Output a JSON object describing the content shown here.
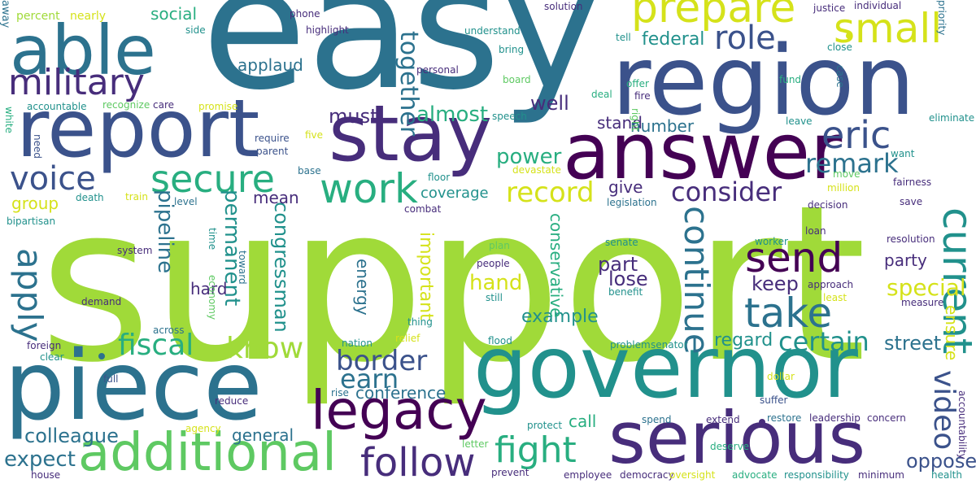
{
  "background": "#ffffff",
  "palette": {
    "dark_purple": "#440154",
    "indigo": "#472d7b",
    "slate_blue": "#3b528b",
    "steel_blue": "#2c728e",
    "teal": "#21918c",
    "sea_green": "#28ae80",
    "green": "#5ec962",
    "lime": "#a0da39",
    "yellow": "#d5e21a"
  },
  "words": [
    {
      "text": "support",
      "color": "lime"
    },
    {
      "text": "easy",
      "color": "steel_blue"
    },
    {
      "text": "governor",
      "color": "teal"
    },
    {
      "text": "piece",
      "color": "steel_blue"
    },
    {
      "text": "region",
      "color": "slate_blue"
    },
    {
      "text": "report",
      "color": "slate_blue"
    },
    {
      "text": "answer",
      "color": "dark_purple"
    },
    {
      "text": "stay",
      "color": "indigo"
    },
    {
      "text": "serious",
      "color": "indigo"
    },
    {
      "text": "able",
      "color": "steel_blue"
    },
    {
      "text": "additional",
      "color": "green"
    },
    {
      "text": "legacy",
      "color": "dark_purple"
    },
    {
      "text": "prepare",
      "color": "yellow"
    },
    {
      "text": "small",
      "color": "yellow"
    },
    {
      "text": "military",
      "color": "indigo"
    },
    {
      "text": "work",
      "color": "sea_green"
    },
    {
      "text": "follow",
      "color": "indigo"
    },
    {
      "text": "secure",
      "color": "sea_green"
    },
    {
      "text": "send",
      "color": "dark_purple"
    },
    {
      "text": "take",
      "color": "steel_blue"
    },
    {
      "text": "current",
      "color": "teal"
    },
    {
      "text": "eric",
      "color": "slate_blue"
    },
    {
      "text": "voice",
      "color": "slate_blue"
    },
    {
      "text": "role",
      "color": "slate_blue"
    },
    {
      "text": "continue",
      "color": "steel_blue"
    },
    {
      "text": "apply",
      "color": "steel_blue"
    },
    {
      "text": "fight",
      "color": "sea_green"
    },
    {
      "text": "fiscal",
      "color": "sea_green"
    },
    {
      "text": "know",
      "color": "lime"
    },
    {
      "text": "record",
      "color": "yellow"
    },
    {
      "text": "border",
      "color": "slate_blue"
    },
    {
      "text": "consider",
      "color": "indigo"
    },
    {
      "text": "video",
      "color": "slate_blue"
    },
    {
      "text": "remark",
      "color": "steel_blue"
    },
    {
      "text": "earn",
      "color": "steel_blue"
    },
    {
      "text": "certain",
      "color": "teal"
    },
    {
      "text": "expect",
      "color": "steel_blue"
    },
    {
      "text": "together",
      "color": "steel_blue"
    },
    {
      "text": "almost",
      "color": "sea_green"
    },
    {
      "text": "special",
      "color": "yellow"
    },
    {
      "text": "power",
      "color": "sea_green"
    },
    {
      "text": "hand",
      "color": "yellow"
    },
    {
      "text": "pipeline",
      "color": "steel_blue"
    },
    {
      "text": "permanent",
      "color": "teal"
    },
    {
      "text": "congressman",
      "color": "teal"
    },
    {
      "text": "must",
      "color": "indigo"
    },
    {
      "text": "well",
      "color": "indigo"
    },
    {
      "text": "colleague",
      "color": "steel_blue"
    },
    {
      "text": "oppose",
      "color": "slate_blue"
    },
    {
      "text": "street",
      "color": "steel_blue"
    },
    {
      "text": "keep",
      "color": "indigo"
    },
    {
      "text": "part",
      "color": "indigo"
    },
    {
      "text": "lose",
      "color": "indigo"
    },
    {
      "text": "example",
      "color": "teal"
    },
    {
      "text": "regard",
      "color": "teal"
    },
    {
      "text": "conference",
      "color": "steel_blue"
    },
    {
      "text": "federal",
      "color": "teal"
    },
    {
      "text": "social",
      "color": "sea_green"
    },
    {
      "text": "group",
      "color": "yellow"
    },
    {
      "text": "general",
      "color": "steel_blue"
    },
    {
      "text": "call",
      "color": "sea_green"
    },
    {
      "text": "mean",
      "color": "indigo"
    },
    {
      "text": "hard",
      "color": "indigo"
    },
    {
      "text": "stand",
      "color": "indigo"
    },
    {
      "text": "number",
      "color": "steel_blue"
    },
    {
      "text": "coverage",
      "color": "teal"
    },
    {
      "text": "give",
      "color": "indigo"
    },
    {
      "text": "party",
      "color": "indigo"
    },
    {
      "text": "important",
      "color": "yellow"
    },
    {
      "text": "conservative",
      "color": "sea_green"
    },
    {
      "text": "energy",
      "color": "steel_blue"
    },
    {
      "text": "applaud",
      "color": "steel_blue"
    },
    {
      "text": "ensure",
      "color": "yellow"
    },
    {
      "text": "percent",
      "color": "lime"
    },
    {
      "text": "nearly",
      "color": "yellow"
    },
    {
      "text": "away",
      "color": "steel_blue"
    },
    {
      "text": "phone",
      "color": "indigo"
    },
    {
      "text": "solution",
      "color": "indigo"
    },
    {
      "text": "justice",
      "color": "indigo"
    },
    {
      "text": "individual",
      "color": "indigo"
    },
    {
      "text": "priority",
      "color": "steel_blue"
    },
    {
      "text": "side",
      "color": "teal"
    },
    {
      "text": "highlight",
      "color": "indigo"
    },
    {
      "text": "understand",
      "color": "teal"
    },
    {
      "text": "bring",
      "color": "teal"
    },
    {
      "text": "tell",
      "color": "teal"
    },
    {
      "text": "close",
      "color": "teal"
    },
    {
      "text": "personal",
      "color": "indigo"
    },
    {
      "text": "fund",
      "color": "sea_green"
    },
    {
      "text": "case",
      "color": "steel_blue"
    },
    {
      "text": "board",
      "color": "green"
    },
    {
      "text": "offer",
      "color": "sea_green"
    },
    {
      "text": "deal",
      "color": "sea_green"
    },
    {
      "text": "fire",
      "color": "indigo"
    },
    {
      "text": "white",
      "color": "sea_green"
    },
    {
      "text": "accountable",
      "color": "teal"
    },
    {
      "text": "recognize",
      "color": "green"
    },
    {
      "text": "care",
      "color": "indigo"
    },
    {
      "text": "promise",
      "color": "yellow"
    },
    {
      "text": "speech",
      "color": "teal"
    },
    {
      "text": "right",
      "color": "green"
    },
    {
      "text": "eliminate",
      "color": "teal"
    },
    {
      "text": "leave",
      "color": "teal"
    },
    {
      "text": "need",
      "color": "slate_blue"
    },
    {
      "text": "five",
      "color": "yellow"
    },
    {
      "text": "require",
      "color": "slate_blue"
    },
    {
      "text": "parent",
      "color": "slate_blue"
    },
    {
      "text": "want",
      "color": "teal"
    },
    {
      "text": "base",
      "color": "steel_blue"
    },
    {
      "text": "floor",
      "color": "teal"
    },
    {
      "text": "devastate",
      "color": "yellow"
    },
    {
      "text": "move",
      "color": "green"
    },
    {
      "text": "fairness",
      "color": "indigo"
    },
    {
      "text": "million",
      "color": "yellow"
    },
    {
      "text": "train",
      "color": "yellow"
    },
    {
      "text": "death",
      "color": "teal"
    },
    {
      "text": "level",
      "color": "steel_blue"
    },
    {
      "text": "legislation",
      "color": "steel_blue"
    },
    {
      "text": "decision",
      "color": "indigo"
    },
    {
      "text": "save",
      "color": "indigo"
    },
    {
      "text": "bipartisan",
      "color": "teal"
    },
    {
      "text": "combat",
      "color": "indigo"
    },
    {
      "text": "loan",
      "color": "indigo"
    },
    {
      "text": "time",
      "color": "teal"
    },
    {
      "text": "system",
      "color": "indigo"
    },
    {
      "text": "plan",
      "color": "green"
    },
    {
      "text": "senate",
      "color": "teal"
    },
    {
      "text": "worker",
      "color": "teal"
    },
    {
      "text": "resolution",
      "color": "indigo"
    },
    {
      "text": "toward",
      "color": "steel_blue"
    },
    {
      "text": "people",
      "color": "indigo"
    },
    {
      "text": "economy",
      "color": "green"
    },
    {
      "text": "approach",
      "color": "indigo"
    },
    {
      "text": "benefit",
      "color": "teal"
    },
    {
      "text": "demand",
      "color": "indigo"
    },
    {
      "text": "still",
      "color": "teal"
    },
    {
      "text": "least",
      "color": "yellow"
    },
    {
      "text": "measure",
      "color": "indigo"
    },
    {
      "text": "across",
      "color": "steel_blue"
    },
    {
      "text": "thing",
      "color": "teal"
    },
    {
      "text": "foreign",
      "color": "indigo"
    },
    {
      "text": "nation",
      "color": "teal"
    },
    {
      "text": "relief",
      "color": "yellow"
    },
    {
      "text": "flood",
      "color": "teal"
    },
    {
      "text": "problem",
      "color": "teal"
    },
    {
      "text": "senator",
      "color": "teal"
    },
    {
      "text": "clear",
      "color": "teal"
    },
    {
      "text": "full",
      "color": "slate_blue"
    },
    {
      "text": "dollar",
      "color": "yellow"
    },
    {
      "text": "reduce",
      "color": "indigo"
    },
    {
      "text": "rise",
      "color": "steel_blue"
    },
    {
      "text": "suffer",
      "color": "slate_blue"
    },
    {
      "text": "agency",
      "color": "yellow"
    },
    {
      "text": "protect",
      "color": "teal"
    },
    {
      "text": "spend",
      "color": "steel_blue"
    },
    {
      "text": "extend",
      "color": "indigo"
    },
    {
      "text": "restore",
      "color": "steel_blue"
    },
    {
      "text": "leadership",
      "color": "indigo"
    },
    {
      "text": "concern",
      "color": "indigo"
    },
    {
      "text": "accountability",
      "color": "indigo"
    },
    {
      "text": "letter",
      "color": "green"
    },
    {
      "text": "deserve",
      "color": "sea_green"
    },
    {
      "text": "house",
      "color": "indigo"
    },
    {
      "text": "prevent",
      "color": "indigo"
    },
    {
      "text": "employee",
      "color": "indigo"
    },
    {
      "text": "democracy",
      "color": "indigo"
    },
    {
      "text": "oversight",
      "color": "yellow"
    },
    {
      "text": "advocate",
      "color": "sea_green"
    },
    {
      "text": "responsibility",
      "color": "teal"
    },
    {
      "text": "minimum",
      "color": "indigo"
    },
    {
      "text": "health",
      "color": "teal"
    }
  ]
}
